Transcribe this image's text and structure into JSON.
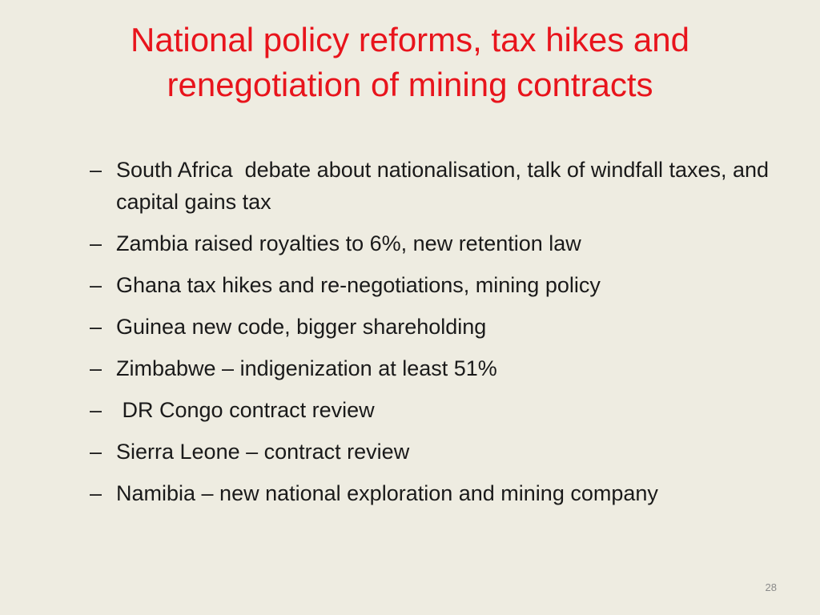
{
  "title": [
    "National policy reforms, tax hikes and",
    "renegotiation of mining contracts"
  ],
  "marker": "–",
  "items": [
    "South Africa  debate about nationalisation, talk of windfall taxes, and capital gains tax",
    "Zambia raised royalties to 6%, new retention law",
    "Ghana tax hikes and re-negotiations, mining policy",
    "Guinea new code, bigger shareholding",
    "Zimbabwe – indigenization at least 51%",
    " DR Congo contract review",
    "Sierra Leone – contract review",
    "Namibia – new national exploration and mining company"
  ],
  "page_number": "28"
}
